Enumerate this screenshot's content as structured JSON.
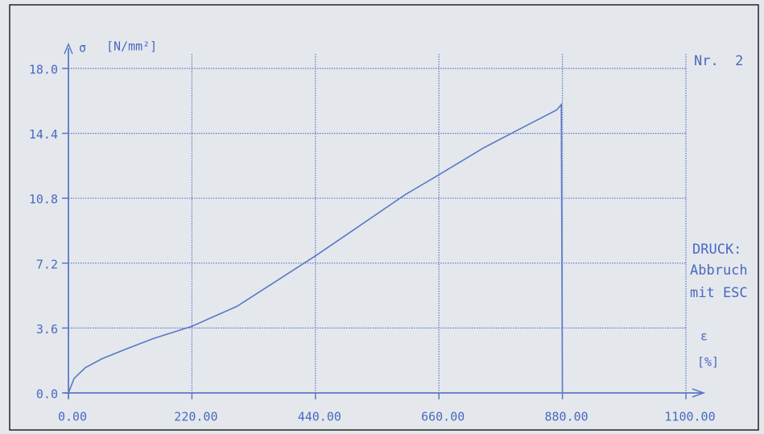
{
  "chart_data": {
    "type": "line",
    "ylabel": "σ",
    "yunit": "[N/mm²]",
    "xlabel": "ε",
    "xunit": "[%]",
    "annotations": [
      "Nr.  2",
      "DRUCK:",
      "Abbruch",
      "mit ESC"
    ],
    "xlim": [
      0,
      1100
    ],
    "ylim": [
      0,
      18
    ],
    "xticks": [
      {
        "value": 0,
        "label": "0.00"
      },
      {
        "value": 220,
        "label": "220.00"
      },
      {
        "value": 440,
        "label": "440.00"
      },
      {
        "value": 660,
        "label": "660.00"
      },
      {
        "value": 880,
        "label": "880.00"
      },
      {
        "value": 1100,
        "label": "1100.00"
      }
    ],
    "yticks": [
      {
        "value": 0,
        "label": "0.0"
      },
      3.6,
      7.2,
      10.8,
      14.4,
      {
        "value": 18,
        "label": "18.0"
      }
    ],
    "grid": true,
    "color": "#5a78c8",
    "series": [
      {
        "name": null,
        "color": "#5a78c8",
        "x": [
          0,
          10,
          30,
          60,
          100,
          150,
          220,
          300,
          360,
          440,
          520,
          600,
          660,
          740,
          820,
          870,
          878,
          880
        ],
        "values": [
          0,
          0.8,
          1.4,
          1.9,
          2.4,
          3.0,
          3.7,
          4.8,
          6.0,
          7.6,
          9.3,
          11.0,
          12.1,
          13.6,
          14.9,
          15.7,
          16.0,
          0
        ]
      }
    ]
  }
}
